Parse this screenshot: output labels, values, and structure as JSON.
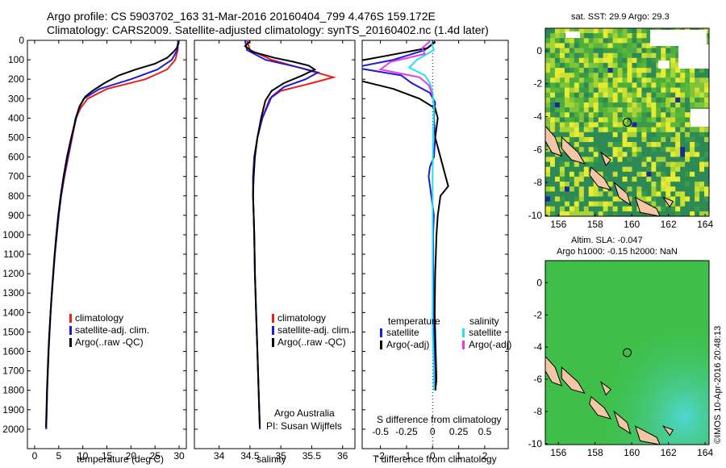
{
  "header": {
    "line1": "Argo profile: CS 5903702_163 31-Mar-2016 20160404_799 4.476S 159.172E",
    "line2": "Climatology: CARS2009. Satellite-adjusted climatology: synTS_20160402.nc (1.4d later)"
  },
  "credit": "©IMOS 10-Apr-2016 20:48:13",
  "colors": {
    "climatology": "#e8201a",
    "satellite": "#1c1cd8",
    "argo": "#000000",
    "cyan": "#22e2f0",
    "magenta": "#e83ae8"
  },
  "chart_data": [
    {
      "type": "line",
      "xlabel": "temperature (deg C)",
      "ylabel": "",
      "xlim": [
        -1.5,
        31.5
      ],
      "ylim": [
        2100,
        0
      ],
      "xticks": [
        0,
        5,
        10,
        15,
        20,
        25,
        30
      ],
      "yticks": [
        0,
        100,
        200,
        300,
        400,
        500,
        600,
        700,
        800,
        900,
        1000,
        1100,
        1200,
        1300,
        1400,
        1500,
        1600,
        1700,
        1800,
        1900,
        2000
      ],
      "legend_position": "lower-center",
      "legend": [
        "climatology",
        "satellite-adj. clim.",
        "Argo(..raw -QC)"
      ],
      "series": [
        {
          "name": "climatology",
          "color_key": "climatology",
          "points": [
            [
              29.8,
              0
            ],
            [
              29.7,
              50
            ],
            [
              29.2,
              100
            ],
            [
              27.5,
              150
            ],
            [
              23,
              200
            ],
            [
              15,
              250
            ],
            [
              11,
              300
            ],
            [
              9.5,
              350
            ],
            [
              8.6,
              400
            ],
            [
              7.8,
              500
            ],
            [
              7.0,
              600
            ],
            [
              6.2,
              700
            ],
            [
              5.5,
              800
            ],
            [
              5.0,
              900
            ],
            [
              4.6,
              1000
            ],
            [
              4.2,
              1100
            ],
            [
              3.9,
              1200
            ],
            [
              3.6,
              1300
            ],
            [
              3.3,
              1400
            ],
            [
              3.1,
              1500
            ],
            [
              2.9,
              1600
            ],
            [
              2.75,
              1700
            ],
            [
              2.6,
              1800
            ],
            [
              2.5,
              1900
            ],
            [
              2.4,
              2000
            ]
          ]
        },
        {
          "name": "satellite-adj. clim.",
          "color_key": "satellite",
          "points": [
            [
              29.8,
              0
            ],
            [
              29.6,
              50
            ],
            [
              28.5,
              100
            ],
            [
              25.5,
              150
            ],
            [
              20,
              200
            ],
            [
              13.5,
              250
            ],
            [
              10.2,
              300
            ],
            [
              9.2,
              350
            ],
            [
              8.5,
              400
            ],
            [
              7.7,
              500
            ],
            [
              6.9,
              600
            ],
            [
              6.1,
              700
            ],
            [
              5.5,
              800
            ],
            [
              5.0,
              900
            ],
            [
              4.6,
              1000
            ],
            [
              4.2,
              1100
            ],
            [
              3.9,
              1200
            ],
            [
              3.6,
              1300
            ],
            [
              3.3,
              1400
            ],
            [
              3.1,
              1500
            ],
            [
              2.9,
              1600
            ],
            [
              2.75,
              1700
            ],
            [
              2.6,
              1800
            ],
            [
              2.5,
              1900
            ],
            [
              2.4,
              2000
            ]
          ]
        },
        {
          "name": "Argo(..raw -QC)",
          "color_key": "argo",
          "points": [
            [
              29.9,
              5
            ],
            [
              29.8,
              20
            ],
            [
              29.5,
              40
            ],
            [
              28.8,
              60
            ],
            [
              27.5,
              90
            ],
            [
              25,
              120
            ],
            [
              21,
              150
            ],
            [
              17.5,
              180
            ],
            [
              14.5,
              220
            ],
            [
              12,
              260
            ],
            [
              10.5,
              290
            ],
            [
              9.3,
              340
            ],
            [
              8.6,
              400
            ],
            [
              7.6,
              500
            ],
            [
              6.7,
              600
            ],
            [
              6.0,
              700
            ],
            [
              5.4,
              800
            ],
            [
              4.9,
              900
            ],
            [
              4.5,
              1000
            ],
            [
              4.15,
              1100
            ],
            [
              3.85,
              1200
            ],
            [
              3.55,
              1300
            ],
            [
              3.3,
              1400
            ],
            [
              3.05,
              1500
            ],
            [
              2.85,
              1600
            ],
            [
              2.7,
              1700
            ],
            [
              2.55,
              1800
            ],
            [
              2.45,
              1900
            ],
            [
              2.35,
              1990
            ]
          ]
        }
      ]
    },
    {
      "type": "line",
      "xlabel": "salinity",
      "xlim": [
        33.6,
        36.2
      ],
      "ylim": [
        2100,
        0
      ],
      "xticks": [
        34,
        34.5,
        35,
        35.5,
        36
      ],
      "legend_position": "lower-right",
      "legend": [
        "climatology",
        "satellite-adj. clim.",
        "Argo(..raw -QC)"
      ],
      "annotation": [
        "Argo Australia",
        "PI: Susan Wijffels"
      ],
      "series": [
        {
          "name": "climatology",
          "color_key": "climatology",
          "points": [
            [
              34.45,
              0
            ],
            [
              34.5,
              50
            ],
            [
              34.85,
              100
            ],
            [
              35.4,
              150
            ],
            [
              35.85,
              190
            ],
            [
              35.5,
              220
            ],
            [
              35.0,
              260
            ],
            [
              34.82,
              300
            ],
            [
              34.7,
              400
            ],
            [
              34.62,
              500
            ],
            [
              34.57,
              600
            ],
            [
              34.55,
              700
            ],
            [
              34.55,
              800
            ],
            [
              34.56,
              900
            ],
            [
              34.57,
              1000
            ],
            [
              34.58,
              1200
            ],
            [
              34.6,
              1400
            ],
            [
              34.62,
              1600
            ],
            [
              34.64,
              1800
            ],
            [
              34.66,
              2000
            ]
          ]
        },
        {
          "name": "satellite-adj. clim.",
          "color_key": "satellite",
          "points": [
            [
              34.42,
              0
            ],
            [
              34.45,
              50
            ],
            [
              34.75,
              100
            ],
            [
              35.3,
              140
            ],
            [
              35.6,
              165
            ],
            [
              35.4,
              200
            ],
            [
              35.05,
              240
            ],
            [
              34.85,
              290
            ],
            [
              34.7,
              400
            ],
            [
              34.62,
              500
            ],
            [
              34.57,
              600
            ],
            [
              34.55,
              700
            ],
            [
              34.55,
              800
            ],
            [
              34.56,
              900
            ],
            [
              34.57,
              1000
            ],
            [
              34.58,
              1200
            ],
            [
              34.6,
              1400
            ],
            [
              34.62,
              1600
            ],
            [
              34.64,
              1800
            ],
            [
              34.66,
              2000
            ]
          ]
        },
        {
          "name": "Argo(..raw -QC)",
          "color_key": "argo",
          "points": [
            [
              34.5,
              5
            ],
            [
              34.42,
              30
            ],
            [
              34.55,
              60
            ],
            [
              34.9,
              90
            ],
            [
              35.2,
              110
            ],
            [
              35.45,
              130
            ],
            [
              35.55,
              150
            ],
            [
              35.35,
              180
            ],
            [
              35.05,
              220
            ],
            [
              34.85,
              260
            ],
            [
              34.75,
              310
            ],
            [
              34.68,
              400
            ],
            [
              34.62,
              500
            ],
            [
              34.58,
              600
            ],
            [
              34.56,
              700
            ],
            [
              34.55,
              800
            ],
            [
              34.56,
              900
            ],
            [
              34.57,
              1000
            ],
            [
              34.58,
              1200
            ],
            [
              34.6,
              1400
            ],
            [
              34.62,
              1600
            ],
            [
              34.64,
              1800
            ],
            [
              34.66,
              1990
            ]
          ]
        }
      ]
    },
    {
      "type": "line",
      "xlabel": "T difference from climatology",
      "xlabel_top": "S difference from climatology",
      "xlim": [
        -2.7,
        2.9
      ],
      "ylim": [
        2100,
        0
      ],
      "xticks": [
        -2,
        -1,
        0,
        1,
        2
      ],
      "xticks_salinity": [
        -0.5,
        -0.25,
        0,
        0.25,
        0.5
      ],
      "legend_position": "lower",
      "legend_titles": [
        "temperature",
        "salinity"
      ],
      "legend": [
        "satellite",
        "Argo(-adj)",
        "satellite",
        "Argo(-adj)"
      ],
      "series": [
        {
          "name": "satellite",
          "color_key": "satellite",
          "points": [
            [
              0.1,
              10
            ],
            [
              -0.3,
              50
            ],
            [
              -1.5,
              100
            ],
            [
              -3,
              140
            ],
            [
              -1.2,
              180
            ],
            [
              -0.8,
              220
            ],
            [
              -0.1,
              270
            ],
            [
              0.1,
              320
            ],
            [
              0.05,
              400
            ],
            [
              0.1,
              500
            ],
            [
              0.05,
              600
            ],
            [
              -0.1,
              650
            ],
            [
              -0.15,
              700
            ],
            [
              -0.05,
              800
            ],
            [
              0.05,
              900
            ],
            [
              0.02,
              1000
            ],
            [
              0.03,
              1200
            ],
            [
              0.04,
              1400
            ],
            [
              0.06,
              1600
            ],
            [
              0.1,
              1750
            ],
            [
              0.12,
              1800
            ]
          ]
        },
        {
          "name": "Argo(-adj)",
          "color_key": "argo",
          "points": [
            [
              0.1,
              5
            ],
            [
              -0.2,
              40
            ],
            [
              -1.8,
              80
            ],
            [
              -3,
              110
            ],
            [
              -3,
              200
            ],
            [
              -1.5,
              250
            ],
            [
              -0.5,
              300
            ],
            [
              0.1,
              350
            ],
            [
              0.2,
              400
            ],
            [
              0.1,
              500
            ],
            [
              0.3,
              600
            ],
            [
              0.5,
              700
            ],
            [
              0.6,
              750
            ],
            [
              0.3,
              800
            ],
            [
              0.2,
              900
            ],
            [
              0.15,
              1000
            ],
            [
              0.1,
              1200
            ],
            [
              0.08,
              1400
            ],
            [
              0.12,
              1600
            ],
            [
              0.15,
              1750
            ],
            [
              0.1,
              1800
            ]
          ]
        },
        {
          "name": "satellite",
          "color_key": "cyan",
          "points": [
            [
              -0.05,
              10
            ],
            [
              0.05,
              50
            ],
            [
              -0.6,
              100
            ],
            [
              -0.9,
              140
            ],
            [
              -0.3,
              180
            ],
            [
              -0.1,
              220
            ],
            [
              0.0,
              270
            ],
            [
              0.05,
              350
            ],
            [
              0.02,
              500
            ],
            [
              0.0,
              700
            ],
            [
              0.0,
              900
            ],
            [
              0.0,
              1100
            ],
            [
              0.0,
              1300
            ],
            [
              0.0,
              1500
            ],
            [
              0.05,
              1700
            ],
            [
              0.05,
              1800
            ]
          ]
        },
        {
          "name": "Argo(-adj)",
          "color_key": "magenta",
          "points": [
            [
              -0.1,
              5
            ],
            [
              -0.4,
              40
            ],
            [
              -0.3,
              70
            ],
            [
              -1.6,
              110
            ],
            [
              -2,
              150
            ],
            [
              -0.5,
              190
            ],
            [
              -0.15,
              230
            ],
            [
              0.0,
              280
            ]
          ]
        }
      ]
    }
  ],
  "maps": [
    {
      "title": "sat. SST: 29.9 Argo: 29.3",
      "xticks": [
        "156",
        "158",
        "160",
        "162",
        "164"
      ],
      "yticks": [
        "0",
        "-2",
        "-4",
        "-6",
        "-8",
        "-10"
      ]
    },
    {
      "title_line1": "Altim. SLA: -0.047",
      "title_line2": "Argo h1000: -0.15 h2000: NaN",
      "xticks": [
        "156",
        "158",
        "160",
        "162",
        "164"
      ],
      "yticks": [
        "0",
        "-2",
        "-4",
        "-6",
        "-8",
        "-10"
      ]
    }
  ]
}
